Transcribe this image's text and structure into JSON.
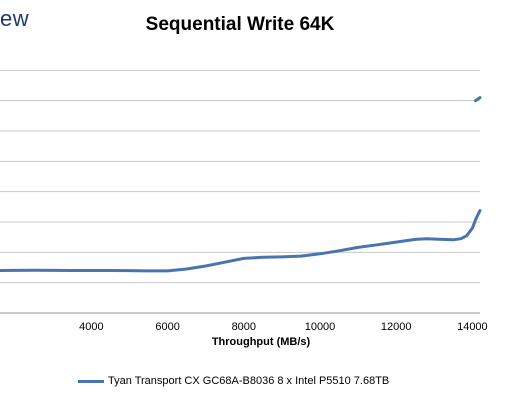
{
  "brand": {
    "text": "ew"
  },
  "chart_data": {
    "type": "line",
    "title": "Sequential Write 64K",
    "xlabel": "Throughput (MB/s)",
    "ylabel": "",
    "xlim": [
      1600,
      14200
    ],
    "ylim": [
      0,
      360
    ],
    "x_ticks": [
      4000,
      6000,
      8000,
      10000,
      12000,
      14000
    ],
    "x_tick_labels": [
      "4000",
      "6000",
      "8000",
      "10000",
      "12000",
      "14000"
    ],
    "y_gridlines": [
      40,
      80,
      120,
      160,
      200,
      240,
      280,
      320
    ],
    "grid": true,
    "legend_position": "bottom",
    "series": [
      {
        "name": "Tyan Transport CX GC68A-B8036 8 x Intel P5510 7.68TB",
        "color": "#4a74b0",
        "x": [
          1600,
          2500,
          3500,
          4500,
          5500,
          6000,
          6500,
          7000,
          7500,
          8000,
          8500,
          9000,
          9500,
          10000,
          10500,
          11000,
          11500,
          12000,
          12500,
          12800,
          13200,
          13500,
          13700,
          13850,
          14000,
          14100,
          14200
        ],
        "y": [
          56,
          56.5,
          56,
          56,
          55.5,
          55.5,
          58,
          62,
          67,
          72,
          73.5,
          74,
          75,
          78,
          82,
          86.5,
          90,
          93.5,
          97,
          98,
          97,
          96.5,
          98,
          102,
          112,
          125,
          135
        ]
      },
      {
        "name": "",
        "color": "#4a74b0",
        "x": [
          14080,
          14200
        ],
        "y": [
          280,
          284
        ]
      }
    ]
  }
}
